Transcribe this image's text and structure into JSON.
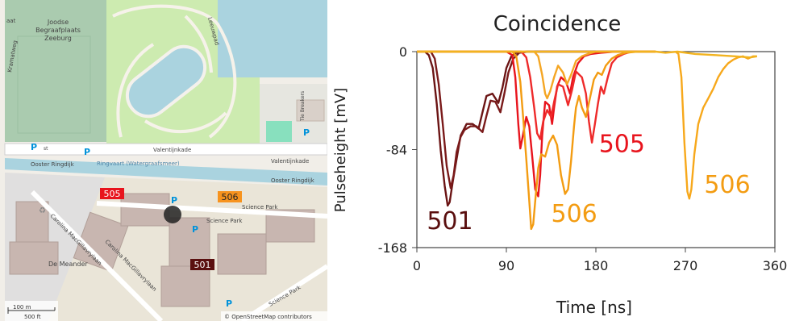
{
  "map": {
    "labels": {
      "cemetery": [
        "Joodse",
        "Begraafplaats",
        "Zeeburg"
      ],
      "valentijnkade_1": "Valentijnkade",
      "valentijnkade_2": "Valentijnkade",
      "ooster_ringdijk_1": "Ooster Ringdijk",
      "ooster_ringdijk_2": "Ooster Ringdijk",
      "canal": "Ringvaart (Watergraafsmeer)",
      "science_park_1": "Science Park",
      "science_park_2": "Science Park",
      "science_park_3": "Science Park",
      "carolina_1": "Carolina MacGillavrylaan",
      "carolina_2": "Carolina MacGillavrylaan",
      "de_meander": "De Meander",
      "tie_breakers": "Tie Breakers",
      "kramatweg": "Kramatweg",
      "leeuwpad": "Leeuwpad",
      "st": "st",
      "aat": "aat"
    },
    "parking_symbol": "P",
    "stations": [
      {
        "label": "505",
        "color": "#e8141d",
        "text_color": "#ffffff"
      },
      {
        "label": "506",
        "color": "#f7931e",
        "text_color": "#222222"
      },
      {
        "label": "501",
        "color": "#5a0f0f",
        "text_color": "#ffffff"
      }
    ],
    "scale": {
      "metric": "100 m",
      "imperial": "500 ft"
    },
    "attribution": "© OpenStreetMap contributors"
  },
  "chart_data": {
    "type": "line",
    "title": "Coincidence",
    "xlabel": "Time [ns]",
    "ylabel": "Pulseheight [mV]",
    "xlim": [
      0,
      360
    ],
    "ylim": [
      -168,
      0
    ],
    "xticks": [
      0,
      90,
      180,
      270,
      360
    ],
    "yticks": [
      0,
      -84,
      -168
    ],
    "grid": false,
    "series": [
      {
        "name": "501",
        "color": "#6b1414",
        "points": [
          [
            0,
            0
          ],
          [
            8,
            0
          ],
          [
            12,
            -3
          ],
          [
            16,
            -14
          ],
          [
            20,
            -45
          ],
          [
            24,
            -85
          ],
          [
            28,
            -115
          ],
          [
            31,
            -132
          ],
          [
            33,
            -129
          ],
          [
            36,
            -112
          ],
          [
            40,
            -92
          ],
          [
            44,
            -72
          ],
          [
            50,
            -62
          ],
          [
            56,
            -62
          ],
          [
            62,
            -66
          ],
          [
            66,
            -52
          ],
          [
            70,
            -38
          ],
          [
            76,
            -36
          ],
          [
            82,
            -44
          ],
          [
            86,
            -31
          ],
          [
            90,
            -14
          ],
          [
            95,
            -4
          ],
          [
            100,
            -1
          ],
          [
            110,
            0
          ],
          [
            240,
            0
          ]
        ]
      },
      {
        "name": "501",
        "color": "#7a1a1a",
        "points": [
          [
            0,
            0
          ],
          [
            14,
            0
          ],
          [
            18,
            -6
          ],
          [
            22,
            -28
          ],
          [
            26,
            -62
          ],
          [
            30,
            -98
          ],
          [
            34,
            -117
          ],
          [
            37,
            -106
          ],
          [
            40,
            -86
          ],
          [
            44,
            -73
          ],
          [
            48,
            -67
          ],
          [
            54,
            -64
          ],
          [
            60,
            -64
          ],
          [
            66,
            -69
          ],
          [
            70,
            -55
          ],
          [
            74,
            -42
          ],
          [
            79,
            -43
          ],
          [
            84,
            -52
          ],
          [
            88,
            -36
          ],
          [
            92,
            -18
          ],
          [
            97,
            -6
          ],
          [
            103,
            -1
          ],
          [
            112,
            0
          ],
          [
            240,
            0
          ]
        ]
      },
      {
        "name": "505",
        "color": "#e8141d",
        "points": [
          [
            0,
            0
          ],
          [
            90,
            0
          ],
          [
            96,
            -3
          ],
          [
            99,
            -22
          ],
          [
            102,
            -62
          ],
          [
            104,
            -83
          ],
          [
            107,
            -70
          ],
          [
            110,
            -56
          ],
          [
            113,
            -64
          ],
          [
            116,
            -90
          ],
          [
            119,
            -118
          ],
          [
            122,
            -124
          ],
          [
            124,
            -106
          ],
          [
            126,
            -72
          ],
          [
            129,
            -43
          ],
          [
            133,
            -46
          ],
          [
            136,
            -62
          ],
          [
            138,
            -48
          ],
          [
            141,
            -30
          ],
          [
            145,
            -22
          ],
          [
            150,
            -26
          ],
          [
            154,
            -36
          ],
          [
            157,
            -22
          ],
          [
            162,
            -10
          ],
          [
            168,
            -4
          ],
          [
            175,
            -2
          ],
          [
            185,
            -1
          ],
          [
            200,
            0
          ],
          [
            240,
            0
          ]
        ]
      },
      {
        "name": "505",
        "color": "#ee2a2a",
        "points": [
          [
            0,
            0
          ],
          [
            105,
            0
          ],
          [
            110,
            -5
          ],
          [
            114,
            -22
          ],
          [
            118,
            -48
          ],
          [
            121,
            -70
          ],
          [
            124,
            -75
          ],
          [
            127,
            -60
          ],
          [
            131,
            -50
          ],
          [
            135,
            -56
          ],
          [
            138,
            -43
          ],
          [
            142,
            -28
          ],
          [
            147,
            -30
          ],
          [
            152,
            -46
          ],
          [
            156,
            -33
          ],
          [
            160,
            -17
          ],
          [
            166,
            -22
          ],
          [
            170,
            -36
          ],
          [
            173,
            -60
          ],
          [
            176,
            -78
          ],
          [
            179,
            -62
          ],
          [
            182,
            -45
          ],
          [
            185,
            -30
          ],
          [
            188,
            -36
          ],
          [
            192,
            -22
          ],
          [
            196,
            -10
          ],
          [
            201,
            -5
          ],
          [
            208,
            -2
          ],
          [
            216,
            0
          ],
          [
            240,
            0
          ]
        ]
      },
      {
        "name": "506",
        "color": "#f39c12",
        "points": [
          [
            0,
            0
          ],
          [
            96,
            0
          ],
          [
            100,
            -4
          ],
          [
            104,
            -26
          ],
          [
            107,
            -58
          ],
          [
            110,
            -92
          ],
          [
            113,
            -128
          ],
          [
            115,
            -152
          ],
          [
            117,
            -148
          ],
          [
            119,
            -128
          ],
          [
            122,
            -100
          ],
          [
            125,
            -88
          ],
          [
            129,
            -90
          ],
          [
            133,
            -78
          ],
          [
            137,
            -72
          ],
          [
            141,
            -80
          ],
          [
            145,
            -106
          ],
          [
            149,
            -122
          ],
          [
            152,
            -118
          ],
          [
            155,
            -94
          ],
          [
            158,
            -64
          ],
          [
            160,
            -48
          ],
          [
            163,
            -38
          ],
          [
            166,
            -48
          ],
          [
            170,
            -56
          ],
          [
            174,
            -40
          ],
          [
            178,
            -24
          ],
          [
            182,
            -18
          ],
          [
            186,
            -20
          ],
          [
            190,
            -12
          ],
          [
            196,
            -6
          ],
          [
            202,
            -3
          ],
          [
            210,
            -1
          ],
          [
            222,
            0
          ],
          [
            240,
            0
          ]
        ]
      },
      {
        "name": "506",
        "color": "#f5a623",
        "points": [
          [
            0,
            0
          ],
          [
            118,
            0
          ],
          [
            122,
            -4
          ],
          [
            126,
            -20
          ],
          [
            129,
            -36
          ],
          [
            131,
            -40
          ],
          [
            134,
            -34
          ],
          [
            138,
            -22
          ],
          [
            142,
            -12
          ],
          [
            147,
            -18
          ],
          [
            151,
            -28
          ],
          [
            155,
            -20
          ],
          [
            160,
            -8
          ],
          [
            166,
            -4
          ],
          [
            172,
            -2
          ],
          [
            180,
            0
          ],
          [
            240,
            0
          ]
        ]
      },
      {
        "name": "506",
        "color": "#f7a81b",
        "points": [
          [
            260,
            0
          ],
          [
            263,
            -2
          ],
          [
            266,
            -22
          ],
          [
            269,
            -78
          ],
          [
            272,
            -120
          ],
          [
            274,
            -126
          ],
          [
            276,
            -118
          ],
          [
            279,
            -88
          ],
          [
            283,
            -62
          ],
          [
            288,
            -48
          ],
          [
            293,
            -40
          ],
          [
            298,
            -32
          ],
          [
            303,
            -22
          ],
          [
            308,
            -15
          ],
          [
            313,
            -10
          ],
          [
            318,
            -7
          ],
          [
            323,
            -5
          ],
          [
            328,
            -4
          ],
          [
            333,
            -6
          ],
          [
            338,
            -4
          ],
          [
            342,
            -4
          ]
        ]
      },
      {
        "name": "",
        "color": "#f2b31f",
        "points": [
          [
            0,
            0
          ],
          [
            240,
            0
          ],
          [
            250,
            -1
          ],
          [
            262,
            0
          ],
          [
            280,
            -2
          ],
          [
            300,
            -3
          ],
          [
            320,
            -4
          ],
          [
            335,
            -5
          ],
          [
            342,
            -4
          ]
        ]
      }
    ],
    "annotations": [
      {
        "text": "501",
        "color": "#5a0f0f",
        "x": 10,
        "y": -152
      },
      {
        "text": "505",
        "color": "#e8141d",
        "x": 183,
        "y": -86
      },
      {
        "text": "506",
        "color": "#f39c12",
        "x": 135,
        "y": -146
      },
      {
        "text": "506",
        "color": "#f39c12",
        "x": 289,
        "y": -121
      }
    ]
  }
}
